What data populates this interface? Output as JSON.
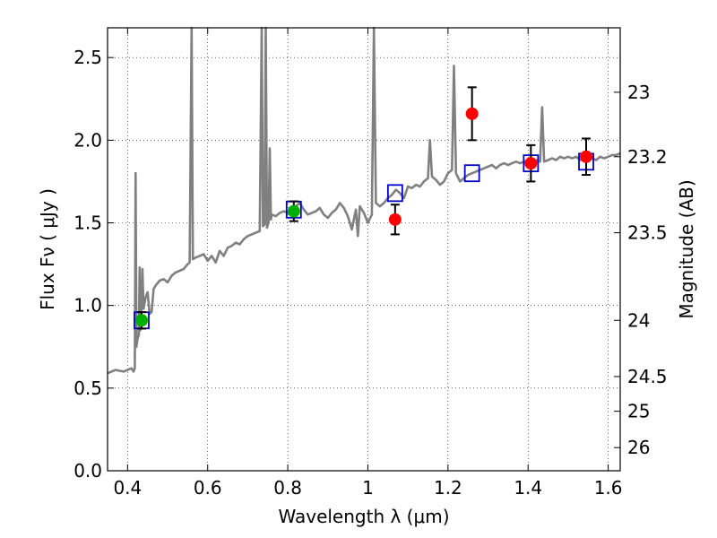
{
  "chart_data": {
    "type": "scatter",
    "xlabel": "Wavelength  λ (μm)",
    "ylabel": "Flux  Fν  ( μJy )",
    "y2label": "Magnitude (AB)",
    "xlim": [
      0.35,
      1.63
    ],
    "ylim": [
      0.0,
      2.68
    ],
    "grid": true,
    "x_ticks": [
      0.4,
      0.6,
      0.8,
      1.0,
      1.2,
      1.4,
      1.6
    ],
    "x_tick_labels": [
      "0.4",
      "0.6",
      "0.8",
      "1",
      "1.2",
      "1.4",
      "1.6"
    ],
    "y_ticks": [
      0.0,
      0.5,
      1.0,
      1.5,
      2.0,
      2.5
    ],
    "y_tick_labels": [
      "0.0",
      "0.5",
      "1.0",
      "1.5",
      "2.0",
      "2.5"
    ],
    "y2_ticks": [
      {
        "label": "23",
        "flux": 2.29
      },
      {
        "label": "23.2",
        "flux": 1.9
      },
      {
        "label": "23.5",
        "flux": 1.44
      },
      {
        "label": "24",
        "flux": 0.91
      },
      {
        "label": "24.5",
        "flux": 0.57
      },
      {
        "label": "25",
        "flux": 0.36
      },
      {
        "label": "26",
        "flux": 0.14
      }
    ],
    "colors": {
      "model": "#808080",
      "model_photometry": "#0000cc",
      "optical_points": "#00b000",
      "nir_points": "#ff0000",
      "errorbar": "#000000"
    },
    "model_spectrum": [
      [
        0.35,
        0.59
      ],
      [
        0.37,
        0.61
      ],
      [
        0.39,
        0.6
      ],
      [
        0.41,
        0.62
      ],
      [
        0.415,
        0.6
      ],
      [
        0.418,
        0.62
      ],
      [
        0.42,
        1.8
      ],
      [
        0.422,
        0.75
      ],
      [
        0.425,
        0.8
      ],
      [
        0.428,
        0.82
      ],
      [
        0.43,
        1.23
      ],
      [
        0.432,
        0.85
      ],
      [
        0.435,
        1.0
      ],
      [
        0.437,
        1.22
      ],
      [
        0.44,
        0.98
      ],
      [
        0.445,
        1.05
      ],
      [
        0.45,
        1.08
      ],
      [
        0.455,
        0.95
      ],
      [
        0.46,
        0.96
      ],
      [
        0.465,
        1.1
      ],
      [
        0.47,
        1.12
      ],
      [
        0.48,
        1.15
      ],
      [
        0.49,
        1.16
      ],
      [
        0.5,
        1.14
      ],
      [
        0.51,
        1.18
      ],
      [
        0.52,
        1.2
      ],
      [
        0.53,
        1.21
      ],
      [
        0.54,
        1.22
      ],
      [
        0.55,
        1.25
      ],
      [
        0.555,
        1.26
      ],
      [
        0.56,
        2.68
      ],
      [
        0.563,
        1.28
      ],
      [
        0.57,
        1.29
      ],
      [
        0.58,
        1.3
      ],
      [
        0.59,
        1.31
      ],
      [
        0.6,
        1.27
      ],
      [
        0.61,
        1.3
      ],
      [
        0.62,
        1.26
      ],
      [
        0.63,
        1.33
      ],
      [
        0.64,
        1.3
      ],
      [
        0.65,
        1.35
      ],
      [
        0.66,
        1.36
      ],
      [
        0.67,
        1.38
      ],
      [
        0.68,
        1.37
      ],
      [
        0.69,
        1.4
      ],
      [
        0.7,
        1.42
      ],
      [
        0.71,
        1.43
      ],
      [
        0.72,
        1.44
      ],
      [
        0.73,
        1.45
      ],
      [
        0.735,
        2.68
      ],
      [
        0.738,
        1.48
      ],
      [
        0.742,
        1.49
      ],
      [
        0.745,
        2.68
      ],
      [
        0.748,
        1.47
      ],
      [
        0.752,
        1.5
      ],
      [
        0.755,
        1.95
      ],
      [
        0.758,
        1.52
      ],
      [
        0.76,
        1.55
      ],
      [
        0.77,
        1.54
      ],
      [
        0.78,
        1.56
      ],
      [
        0.79,
        1.57
      ],
      [
        0.8,
        1.56
      ],
      [
        0.81,
        1.58
      ],
      [
        0.82,
        1.6
      ],
      [
        0.83,
        1.62
      ],
      [
        0.84,
        1.58
      ],
      [
        0.85,
        1.55
      ],
      [
        0.86,
        1.56
      ],
      [
        0.87,
        1.57
      ],
      [
        0.88,
        1.59
      ],
      [
        0.89,
        1.55
      ],
      [
        0.9,
        1.53
      ],
      [
        0.91,
        1.56
      ],
      [
        0.92,
        1.58
      ],
      [
        0.93,
        1.62
      ],
      [
        0.94,
        1.59
      ],
      [
        0.95,
        1.54
      ],
      [
        0.96,
        1.46
      ],
      [
        0.97,
        1.58
      ],
      [
        0.975,
        1.42
      ],
      [
        0.98,
        1.6
      ],
      [
        0.99,
        1.56
      ],
      [
        1.0,
        1.5
      ],
      [
        1.01,
        1.55
      ],
      [
        1.015,
        2.68
      ],
      [
        1.02,
        1.62
      ],
      [
        1.03,
        1.6
      ],
      [
        1.04,
        1.62
      ],
      [
        1.05,
        1.65
      ],
      [
        1.06,
        1.67
      ],
      [
        1.07,
        1.7
      ],
      [
        1.08,
        1.68
      ],
      [
        1.09,
        1.65
      ],
      [
        1.1,
        1.72
      ],
      [
        1.11,
        1.71
      ],
      [
        1.12,
        1.73
      ],
      [
        1.13,
        1.72
      ],
      [
        1.14,
        1.75
      ],
      [
        1.15,
        1.77
      ],
      [
        1.155,
        2.0
      ],
      [
        1.16,
        1.78
      ],
      [
        1.17,
        1.76
      ],
      [
        1.18,
        1.73
      ],
      [
        1.19,
        1.75
      ],
      [
        1.2,
        1.8
      ],
      [
        1.21,
        1.82
      ],
      [
        1.215,
        2.45
      ],
      [
        1.22,
        1.8
      ],
      [
        1.23,
        1.75
      ],
      [
        1.24,
        1.77
      ],
      [
        1.25,
        1.79
      ],
      [
        1.26,
        1.8
      ],
      [
        1.27,
        1.81
      ],
      [
        1.28,
        1.82
      ],
      [
        1.29,
        1.83
      ],
      [
        1.3,
        1.84
      ],
      [
        1.31,
        1.85
      ],
      [
        1.32,
        1.83
      ],
      [
        1.33,
        1.85
      ],
      [
        1.34,
        1.86
      ],
      [
        1.35,
        1.85
      ],
      [
        1.36,
        1.86
      ],
      [
        1.37,
        1.87
      ],
      [
        1.38,
        1.86
      ],
      [
        1.39,
        1.87
      ],
      [
        1.4,
        1.88
      ],
      [
        1.41,
        1.87
      ],
      [
        1.42,
        1.88
      ],
      [
        1.43,
        1.87
      ],
      [
        1.435,
        2.2
      ],
      [
        1.44,
        1.87
      ],
      [
        1.45,
        1.88
      ],
      [
        1.46,
        1.89
      ],
      [
        1.47,
        1.88
      ],
      [
        1.48,
        1.9
      ],
      [
        1.49,
        1.89
      ],
      [
        1.5,
        1.9
      ],
      [
        1.51,
        1.89
      ],
      [
        1.52,
        1.9
      ],
      [
        1.53,
        1.88
      ],
      [
        1.54,
        1.89
      ],
      [
        1.55,
        1.88
      ],
      [
        1.56,
        1.89
      ],
      [
        1.57,
        1.88
      ],
      [
        1.58,
        1.9
      ],
      [
        1.59,
        1.89
      ],
      [
        1.6,
        1.9
      ],
      [
        1.61,
        1.91
      ],
      [
        1.62,
        1.91
      ],
      [
        1.63,
        1.92
      ]
    ],
    "model_photometry": [
      {
        "x": 0.435,
        "y": 0.91
      },
      {
        "x": 0.815,
        "y": 1.58
      },
      {
        "x": 1.068,
        "y": 1.68
      },
      {
        "x": 1.26,
        "y": 1.8
      },
      {
        "x": 1.407,
        "y": 1.86
      },
      {
        "x": 1.545,
        "y": 1.87
      }
    ],
    "observed_optical": [
      {
        "x": 0.435,
        "y": 0.91,
        "yerr": 0.05
      },
      {
        "x": 0.815,
        "y": 1.57,
        "yerr": 0.06
      }
    ],
    "observed_nir": [
      {
        "x": 1.068,
        "y": 1.52,
        "yerr": 0.09
      },
      {
        "x": 1.26,
        "y": 2.16,
        "yerr": 0.16
      },
      {
        "x": 1.407,
        "y": 1.86,
        "yerr": 0.11
      },
      {
        "x": 1.545,
        "y": 1.9,
        "yerr": 0.11
      }
    ]
  }
}
